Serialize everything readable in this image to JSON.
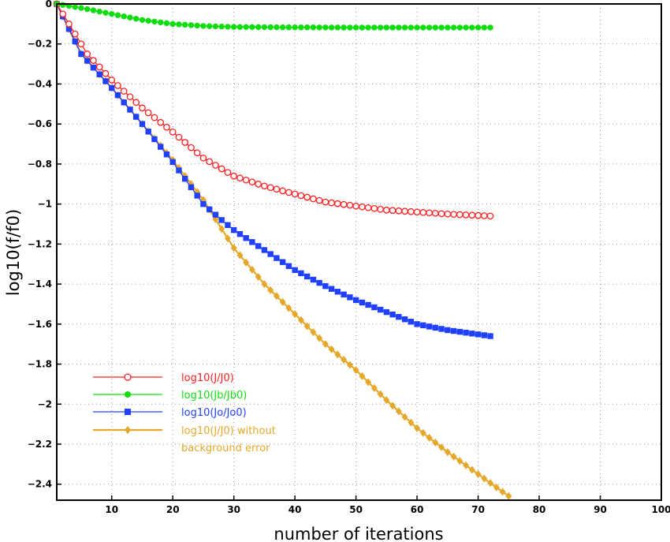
{
  "chart_data": {
    "type": "line",
    "xlabel": "number  of  iterations",
    "ylabel": "log10(f/f0)",
    "xlim": [
      1,
      100
    ],
    "ylim": [
      -2.48,
      0
    ],
    "xticks": [
      10,
      20,
      30,
      40,
      50,
      60,
      70,
      80,
      90,
      100
    ],
    "yticks": [
      0,
      -0.2,
      -0.4,
      -0.6,
      -0.8,
      -1,
      -1.2,
      -1.4,
      -1.6,
      -1.8,
      -2,
      -2.2,
      -2.4
    ],
    "ytick_labels": [
      "0",
      "−0.2",
      "−0.4",
      "−0.6",
      "−0.8",
      "−1",
      "−1.2",
      "−1.4",
      "−1.6",
      "−1.8",
      "−2",
      "−2.2",
      "−2.4"
    ],
    "grid": true,
    "legend_position": "bottom-left",
    "series": [
      {
        "name": "log10(J/J0)",
        "color": "#ff2020",
        "marker": "open-circle",
        "points": [
          [
            1,
            0
          ],
          [
            6,
            -0.25
          ],
          [
            10,
            -0.38
          ],
          [
            15,
            -0.52
          ],
          [
            20,
            -0.64
          ],
          [
            25,
            -0.77
          ],
          [
            30,
            -0.86
          ],
          [
            35,
            -0.91
          ],
          [
            40,
            -0.95
          ],
          [
            45,
            -0.99
          ],
          [
            50,
            -1.01
          ],
          [
            55,
            -1.03
          ],
          [
            60,
            -1.04
          ],
          [
            65,
            -1.05
          ],
          [
            72,
            -1.06
          ]
        ]
      },
      {
        "name": "log10(Jb/Jb0)",
        "color": "#10dd10",
        "marker": "filled-circle",
        "points": [
          [
            1,
            0
          ],
          [
            5,
            -0.02
          ],
          [
            10,
            -0.05
          ],
          [
            15,
            -0.08
          ],
          [
            20,
            -0.1
          ],
          [
            25,
            -0.11
          ],
          [
            30,
            -0.115
          ],
          [
            40,
            -0.117
          ],
          [
            50,
            -0.118
          ],
          [
            60,
            -0.118
          ],
          [
            72,
            -0.118
          ]
        ]
      },
      {
        "name": "log10(Jo/Jo0)",
        "color": "#2040ff",
        "marker": "filled-square",
        "points": [
          [
            1,
            0
          ],
          [
            5,
            -0.25
          ],
          [
            10,
            -0.42
          ],
          [
            15,
            -0.6
          ],
          [
            20,
            -0.79
          ],
          [
            25,
            -1.0
          ],
          [
            28,
            -1.08
          ],
          [
            30,
            -1.13
          ],
          [
            35,
            -1.23
          ],
          [
            40,
            -1.33
          ],
          [
            45,
            -1.41
          ],
          [
            50,
            -1.48
          ],
          [
            55,
            -1.54
          ],
          [
            60,
            -1.6
          ],
          [
            65,
            -1.63
          ],
          [
            72,
            -1.66
          ]
        ]
      },
      {
        "name": "log10(J/J0) without background error",
        "legend_lines": [
          "log10(J/J0)  without",
          "background  error"
        ],
        "color": "#e6a82a",
        "marker": "filled-diamond",
        "points": [
          [
            1,
            0
          ],
          [
            5,
            -0.25
          ],
          [
            10,
            -0.42
          ],
          [
            15,
            -0.6
          ],
          [
            20,
            -0.78
          ],
          [
            25,
            -0.98
          ],
          [
            30,
            -1.22
          ],
          [
            35,
            -1.4
          ],
          [
            40,
            -1.55
          ],
          [
            45,
            -1.7
          ],
          [
            50,
            -1.83
          ],
          [
            55,
            -1.98
          ],
          [
            60,
            -2.12
          ],
          [
            65,
            -2.24
          ],
          [
            70,
            -2.35
          ],
          [
            75,
            -2.46
          ]
        ]
      }
    ]
  }
}
